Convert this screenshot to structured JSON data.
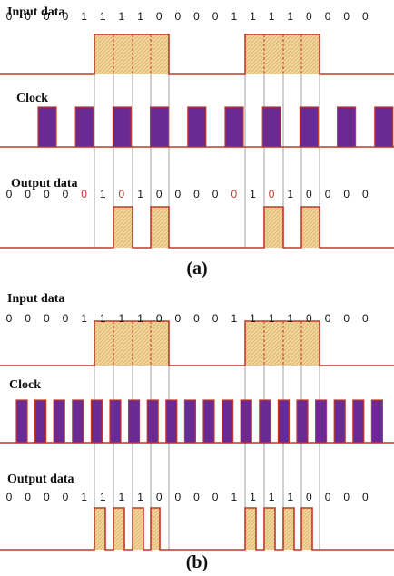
{
  "colors": {
    "signal_line": "#c0392b",
    "data_fill": "#f1d59a",
    "data_hatch": "#d9b26b",
    "clock_fill": "#6a2a95",
    "guide_line": "#8a8a8a"
  },
  "panels": [
    {
      "id": "a",
      "caption": "(a)",
      "input_label": "Input data",
      "clock_label": "Clock",
      "output_label": "Output data",
      "input_bits": [
        "0",
        "0",
        "0",
        "0",
        "1",
        "1",
        "1",
        "1",
        "0",
        "0",
        "0",
        "0",
        "1",
        "1",
        "1",
        "1",
        "0",
        "0",
        "0",
        "0"
      ],
      "output_bits": [
        {
          "t": "0",
          "red": false
        },
        {
          "t": "0",
          "red": false
        },
        {
          "t": "0",
          "red": false
        },
        {
          "t": "0",
          "red": false
        },
        {
          "t": "0",
          "red": true
        },
        {
          "t": "1",
          "red": false
        },
        {
          "t": "0",
          "red": true
        },
        {
          "t": "1",
          "red": false
        },
        {
          "t": "0",
          "red": false
        },
        {
          "t": "0",
          "red": false
        },
        {
          "t": "0",
          "red": false
        },
        {
          "t": "0",
          "red": false
        },
        {
          "t": "0",
          "red": true
        },
        {
          "t": "1",
          "red": false
        },
        {
          "t": "0",
          "red": true
        },
        {
          "t": "1",
          "red": false
        },
        {
          "t": "0",
          "red": false
        },
        {
          "t": "0",
          "red": false
        },
        {
          "t": "0",
          "red": false
        },
        {
          "t": "0",
          "red": false
        }
      ]
    },
    {
      "id": "b",
      "caption": "(b)",
      "input_label": "Input data",
      "clock_label": "Clock",
      "output_label": "Output data",
      "input_bits": [
        "0",
        "0",
        "0",
        "0",
        "1",
        "1",
        "1",
        "1",
        "0",
        "0",
        "0",
        "0",
        "1",
        "1",
        "1",
        "1",
        "0",
        "0",
        "0",
        "0"
      ],
      "output_bits": [
        {
          "t": "0",
          "red": false
        },
        {
          "t": "0",
          "red": false
        },
        {
          "t": "0",
          "red": false
        },
        {
          "t": "0",
          "red": false
        },
        {
          "t": "1",
          "red": false
        },
        {
          "t": "1",
          "red": false
        },
        {
          "t": "1",
          "red": false
        },
        {
          "t": "1",
          "red": false
        },
        {
          "t": "0",
          "red": false
        },
        {
          "t": "0",
          "red": false
        },
        {
          "t": "0",
          "red": false
        },
        {
          "t": "0",
          "red": false
        },
        {
          "t": "1",
          "red": false
        },
        {
          "t": "1",
          "red": false
        },
        {
          "t": "1",
          "red": false
        },
        {
          "t": "1",
          "red": false
        },
        {
          "t": "0",
          "red": false
        },
        {
          "t": "0",
          "red": false
        },
        {
          "t": "0",
          "red": false
        },
        {
          "t": "0",
          "red": false
        }
      ]
    }
  ]
}
